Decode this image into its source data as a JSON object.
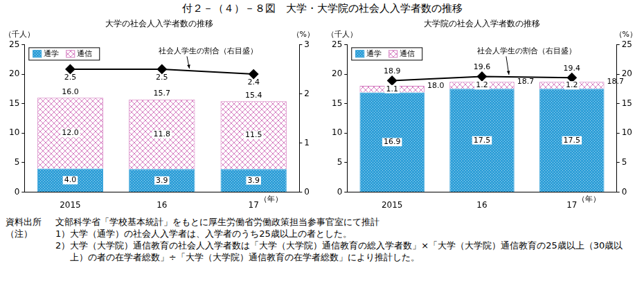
{
  "title": "付２－（４）－８図　大学・大学院の社会人入学者数の推移",
  "source": {
    "label": "資料出所",
    "text": "文部科学省「学校基本統計」をもとに厚生労働省労働政策担当参事官室にて推計"
  },
  "notes": {
    "label": "（注）",
    "items": [
      "1）大学（通学）の社会人入学者は、入学者のうち25歳以上の者とした。",
      "2）大学（大学院）通信教育の社会人入学者数は「大学（大学院）通信教育の総入学者数」×「大学（大学院）通信教育の25歳以上（30歳以上）の者の在学者総数」÷「大学（大学院）通信教育の在学者総数」により推計した。"
    ]
  },
  "chart_data": [
    {
      "type": "bar",
      "title": "大学の社会人入学者数の推移",
      "stacked": true,
      "grid": false,
      "legend": "upper left",
      "data_labels": true,
      "xlabel": "（年）",
      "ylabel": "（千人）",
      "y2label": "（%）",
      "categories": [
        "2015",
        "16",
        "17"
      ],
      "ylim": [
        0,
        25
      ],
      "yticks": [
        0,
        5,
        10,
        15,
        20,
        25
      ],
      "y2lim": [
        0,
        3
      ],
      "y2ticks": [
        0,
        1,
        2,
        3
      ],
      "series": [
        {
          "name": "通学",
          "color": "#2f9fd8",
          "values": [
            4.0,
            3.9,
            3.9
          ],
          "value_labels": [
            "4.0",
            "3.9",
            "3.9"
          ]
        },
        {
          "name": "通信",
          "color": "#d57cc0",
          "values": [
            12.0,
            11.8,
            11.5
          ],
          "value_labels": [
            "12.0",
            "11.8",
            "11.5"
          ]
        },
        {
          "name": "社会人学生の割合（右目盛）",
          "type": "line",
          "axis": "y2",
          "color": "#000000",
          "marker": "diamond",
          "values": [
            2.5,
            2.5,
            2.4
          ],
          "value_labels": [
            "2.5",
            "2.5",
            "2.4"
          ]
        }
      ],
      "totals": [
        16.0,
        15.7,
        15.4
      ],
      "total_labels": [
        "16.0",
        "15.7",
        "15.4"
      ]
    },
    {
      "type": "bar",
      "title": "大学院の社会人入学者数の推移",
      "stacked": true,
      "grid": false,
      "legend": "upper left",
      "data_labels": true,
      "xlabel": "（年）",
      "ylabel": "（千人）",
      "y2label": "（%）",
      "categories": [
        "2015",
        "16",
        "17"
      ],
      "ylim": [
        0,
        25
      ],
      "yticks": [
        0,
        5,
        10,
        15,
        20,
        25
      ],
      "y2lim": [
        0,
        25
      ],
      "y2ticks": [
        0,
        5,
        10,
        15,
        20,
        25
      ],
      "series": [
        {
          "name": "通学",
          "color": "#2f9fd8",
          "values": [
            16.9,
            17.5,
            17.5
          ],
          "value_labels": [
            "16.9",
            "17.5",
            "17.5"
          ]
        },
        {
          "name": "通信",
          "color": "#d57cc0",
          "values": [
            1.1,
            1.2,
            1.2
          ],
          "value_labels": [
            "1.1",
            "1.2",
            "1.2"
          ]
        },
        {
          "name": "社会人学生の割合（右目盛）",
          "type": "line",
          "axis": "y2",
          "color": "#000000",
          "marker": "diamond",
          "values": [
            18.9,
            19.6,
            19.4
          ],
          "value_labels": [
            "18.9",
            "19.6",
            "19.4"
          ]
        }
      ],
      "totals": [
        18.0,
        18.7,
        18.7
      ],
      "total_labels": [
        "18.0",
        "18.7",
        "18.7"
      ]
    }
  ]
}
